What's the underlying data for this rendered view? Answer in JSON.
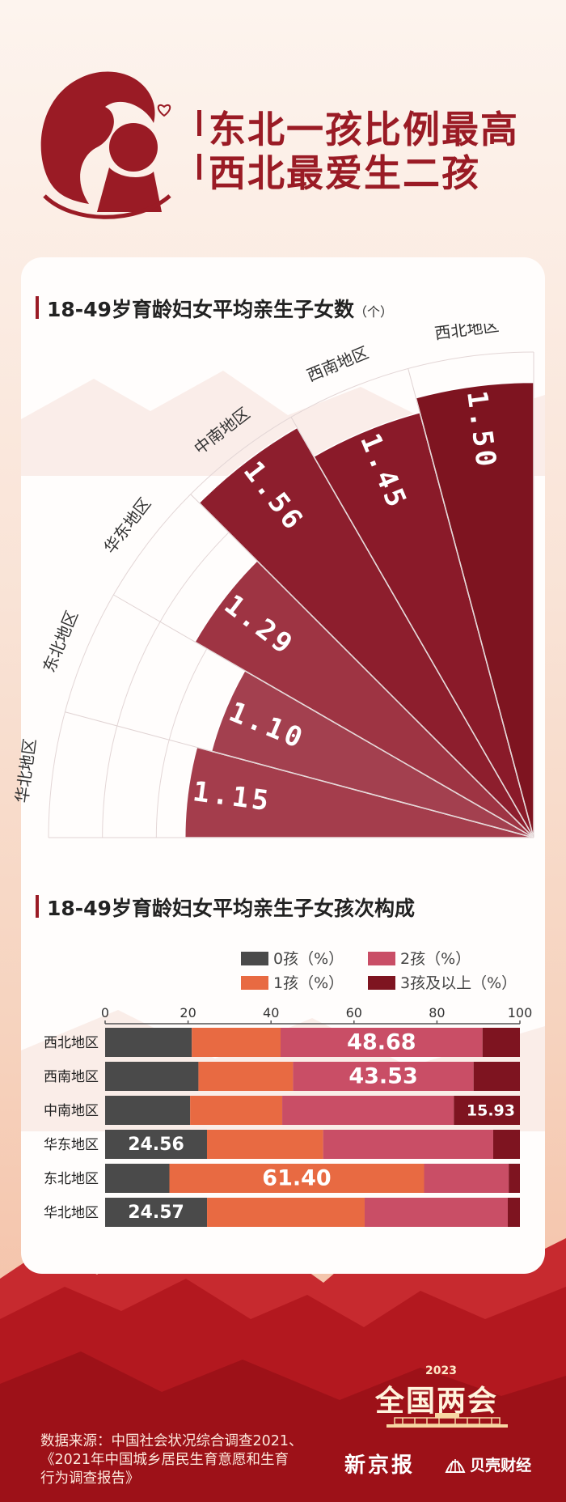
{
  "headline": {
    "line1": "东北一孩比例最高",
    "line2": "西北最爱生二孩"
  },
  "colors": {
    "brand_red": "#9a1b25",
    "zero_children": "#4a4a4a",
    "one_child": "#e86a42",
    "two_children": "#c94e66",
    "three_plus": "#7e1420"
  },
  "section1": {
    "title": "18-49岁育龄妇女平均亲生子女数",
    "unit": "（个）"
  },
  "section2": {
    "title": "18-49岁育龄妇女平均亲生子女孩次构成",
    "legend": [
      {
        "label": "0孩（%）",
        "color": "#4a4a4a"
      },
      {
        "label": "2孩（%）",
        "color": "#c94e66"
      },
      {
        "label": "1孩（%）",
        "color": "#e86a42"
      },
      {
        "label": "3孩及以上（%）",
        "color": "#7e1420"
      }
    ]
  },
  "chart_data": [
    {
      "type": "bar",
      "subtype": "radial",
      "title": "18-49岁育龄妇女平均亲生子女数",
      "unit": "（个）",
      "categories": [
        "华北地区",
        "东北地区",
        "华东地区",
        "中南地区",
        "西南地区",
        "西北地区"
      ],
      "values": [
        1.15,
        1.1,
        1.29,
        1.56,
        1.45,
        1.5
      ],
      "value_labels": [
        "1.15",
        "1.10",
        "1.29",
        "1.56",
        "1.45",
        "1.50"
      ]
    },
    {
      "type": "bar",
      "subtype": "horizontal-stacked",
      "title": "18-49岁育龄妇女平均亲生子女孩次构成",
      "categories": [
        "西北地区",
        "西南地区",
        "中南地区",
        "华东地区",
        "东北地区",
        "华北地区"
      ],
      "x_ticks": [
        "0",
        "20",
        "40",
        "60",
        "80",
        "100"
      ],
      "xlim": [
        0,
        100
      ],
      "series": [
        {
          "name": "0孩（%）",
          "values": [
            20.9,
            22.5,
            20.5,
            24.56,
            15.5,
            24.57
          ]
        },
        {
          "name": "1孩（%）",
          "values": [
            21.4,
            22.8,
            22.2,
            28.0,
            61.4,
            38.0
          ]
        },
        {
          "name": "2孩（%）",
          "values": [
            48.68,
            43.53,
            41.37,
            41.0,
            20.4,
            34.5
          ]
        },
        {
          "name": "3孩及以上（%）",
          "values": [
            9.02,
            11.17,
            15.93,
            6.44,
            2.7,
            2.93
          ]
        }
      ],
      "data_labels": [
        "48.68",
        "43.53",
        "15.93",
        "24.56",
        "61.40",
        "24.57"
      ]
    }
  ],
  "footer": {
    "source_line1": "数据来源：中国社会状况综合调查2021、",
    "source_line2": "《2021年中国城乡居民生育意愿和生育",
    "source_line3": "行为调查报告》",
    "badge_year": "2023",
    "badge_title": "全国两会",
    "brand1": "新京报",
    "brand2": "贝壳财经"
  }
}
